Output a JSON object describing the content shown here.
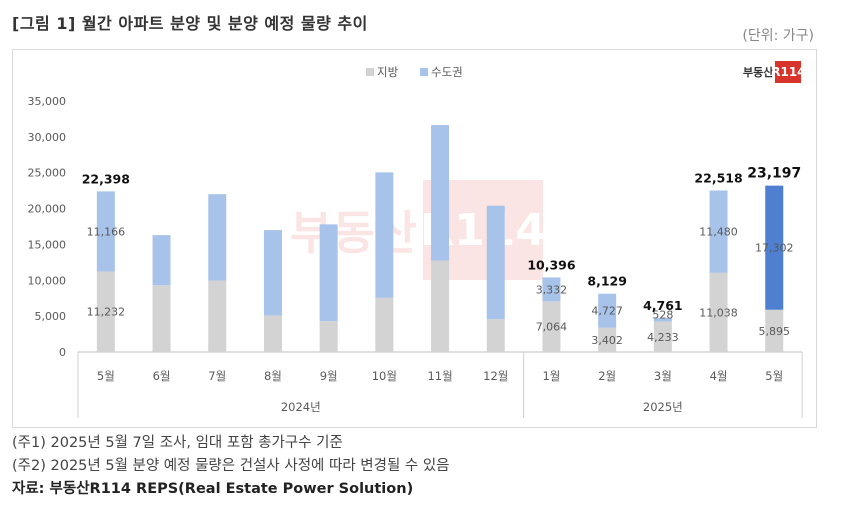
{
  "header": {
    "title": "[그림 1] 월간 아파트 분양 및 분양 예정 물량 추이",
    "unit": "(단위: 가구)"
  },
  "logo": {
    "text": "부동산",
    "badge": "R114"
  },
  "watermark": {
    "text": "부동산",
    "badge": "R114"
  },
  "notes": {
    "note1": "(주1) 2025년 5월 7일 조사, 임대 포함 총가구수 기준",
    "note2": "(주2) 2025년 5월 분양 예정 물량은 건설사 사정에 따라 변경될 수 있음",
    "source": "자료: 부동산R114 REPS(Real Estate Power Solution)"
  },
  "colors": {
    "local": "#d3d3d3",
    "capital": "#a8c3ea",
    "capital_highlight": "#4f7fd1",
    "grid": "#e6e6e6",
    "brand": "#d9342b"
  },
  "chart_data": {
    "type": "bar",
    "stacked": true,
    "legend": {
      "position": "top-center",
      "entries": [
        "지방",
        "수도권"
      ]
    },
    "categories": [
      "5월",
      "6월",
      "7월",
      "8월",
      "9월",
      "10월",
      "11월",
      "12월",
      "1월",
      "2월",
      "3월",
      "4월",
      "5월"
    ],
    "groups": [
      {
        "label": "2024년",
        "count": 8
      },
      {
        "label": "2025년",
        "count": 5
      }
    ],
    "series": [
      {
        "name": "지방",
        "values": [
          11232,
          9300,
          9950,
          5100,
          4300,
          7550,
          12750,
          4600,
          7064,
          3402,
          4233,
          11038,
          5895
        ]
      },
      {
        "name": "수도권",
        "values": [
          11166,
          7000,
          12050,
          11900,
          13500,
          17500,
          18900,
          15800,
          3332,
          4727,
          528,
          11480,
          17302
        ]
      }
    ],
    "series_labels": {
      "지방": [
        "11,232",
        "",
        "",
        "",
        "",
        "",
        "",
        "",
        "7,064",
        "3,402",
        "4,233",
        "11,038",
        "5,895"
      ],
      "수도권": [
        "11,166",
        "",
        "",
        "",
        "",
        "",
        "",
        "",
        "3,332",
        "4,727",
        "528",
        "11,480",
        "17,302"
      ]
    },
    "total_labels": [
      "22,398",
      "",
      "",
      "",
      "",
      "",
      "",
      "",
      "10,396",
      "8,129",
      "4,761",
      "22,518",
      "23,197"
    ],
    "highlight_index": 12,
    "yticks": [
      "0",
      "5,000",
      "10,000",
      "15,000",
      "20,000",
      "25,000",
      "30,000",
      "35,000"
    ],
    "ylim": [
      0,
      35000
    ],
    "grid": false
  }
}
